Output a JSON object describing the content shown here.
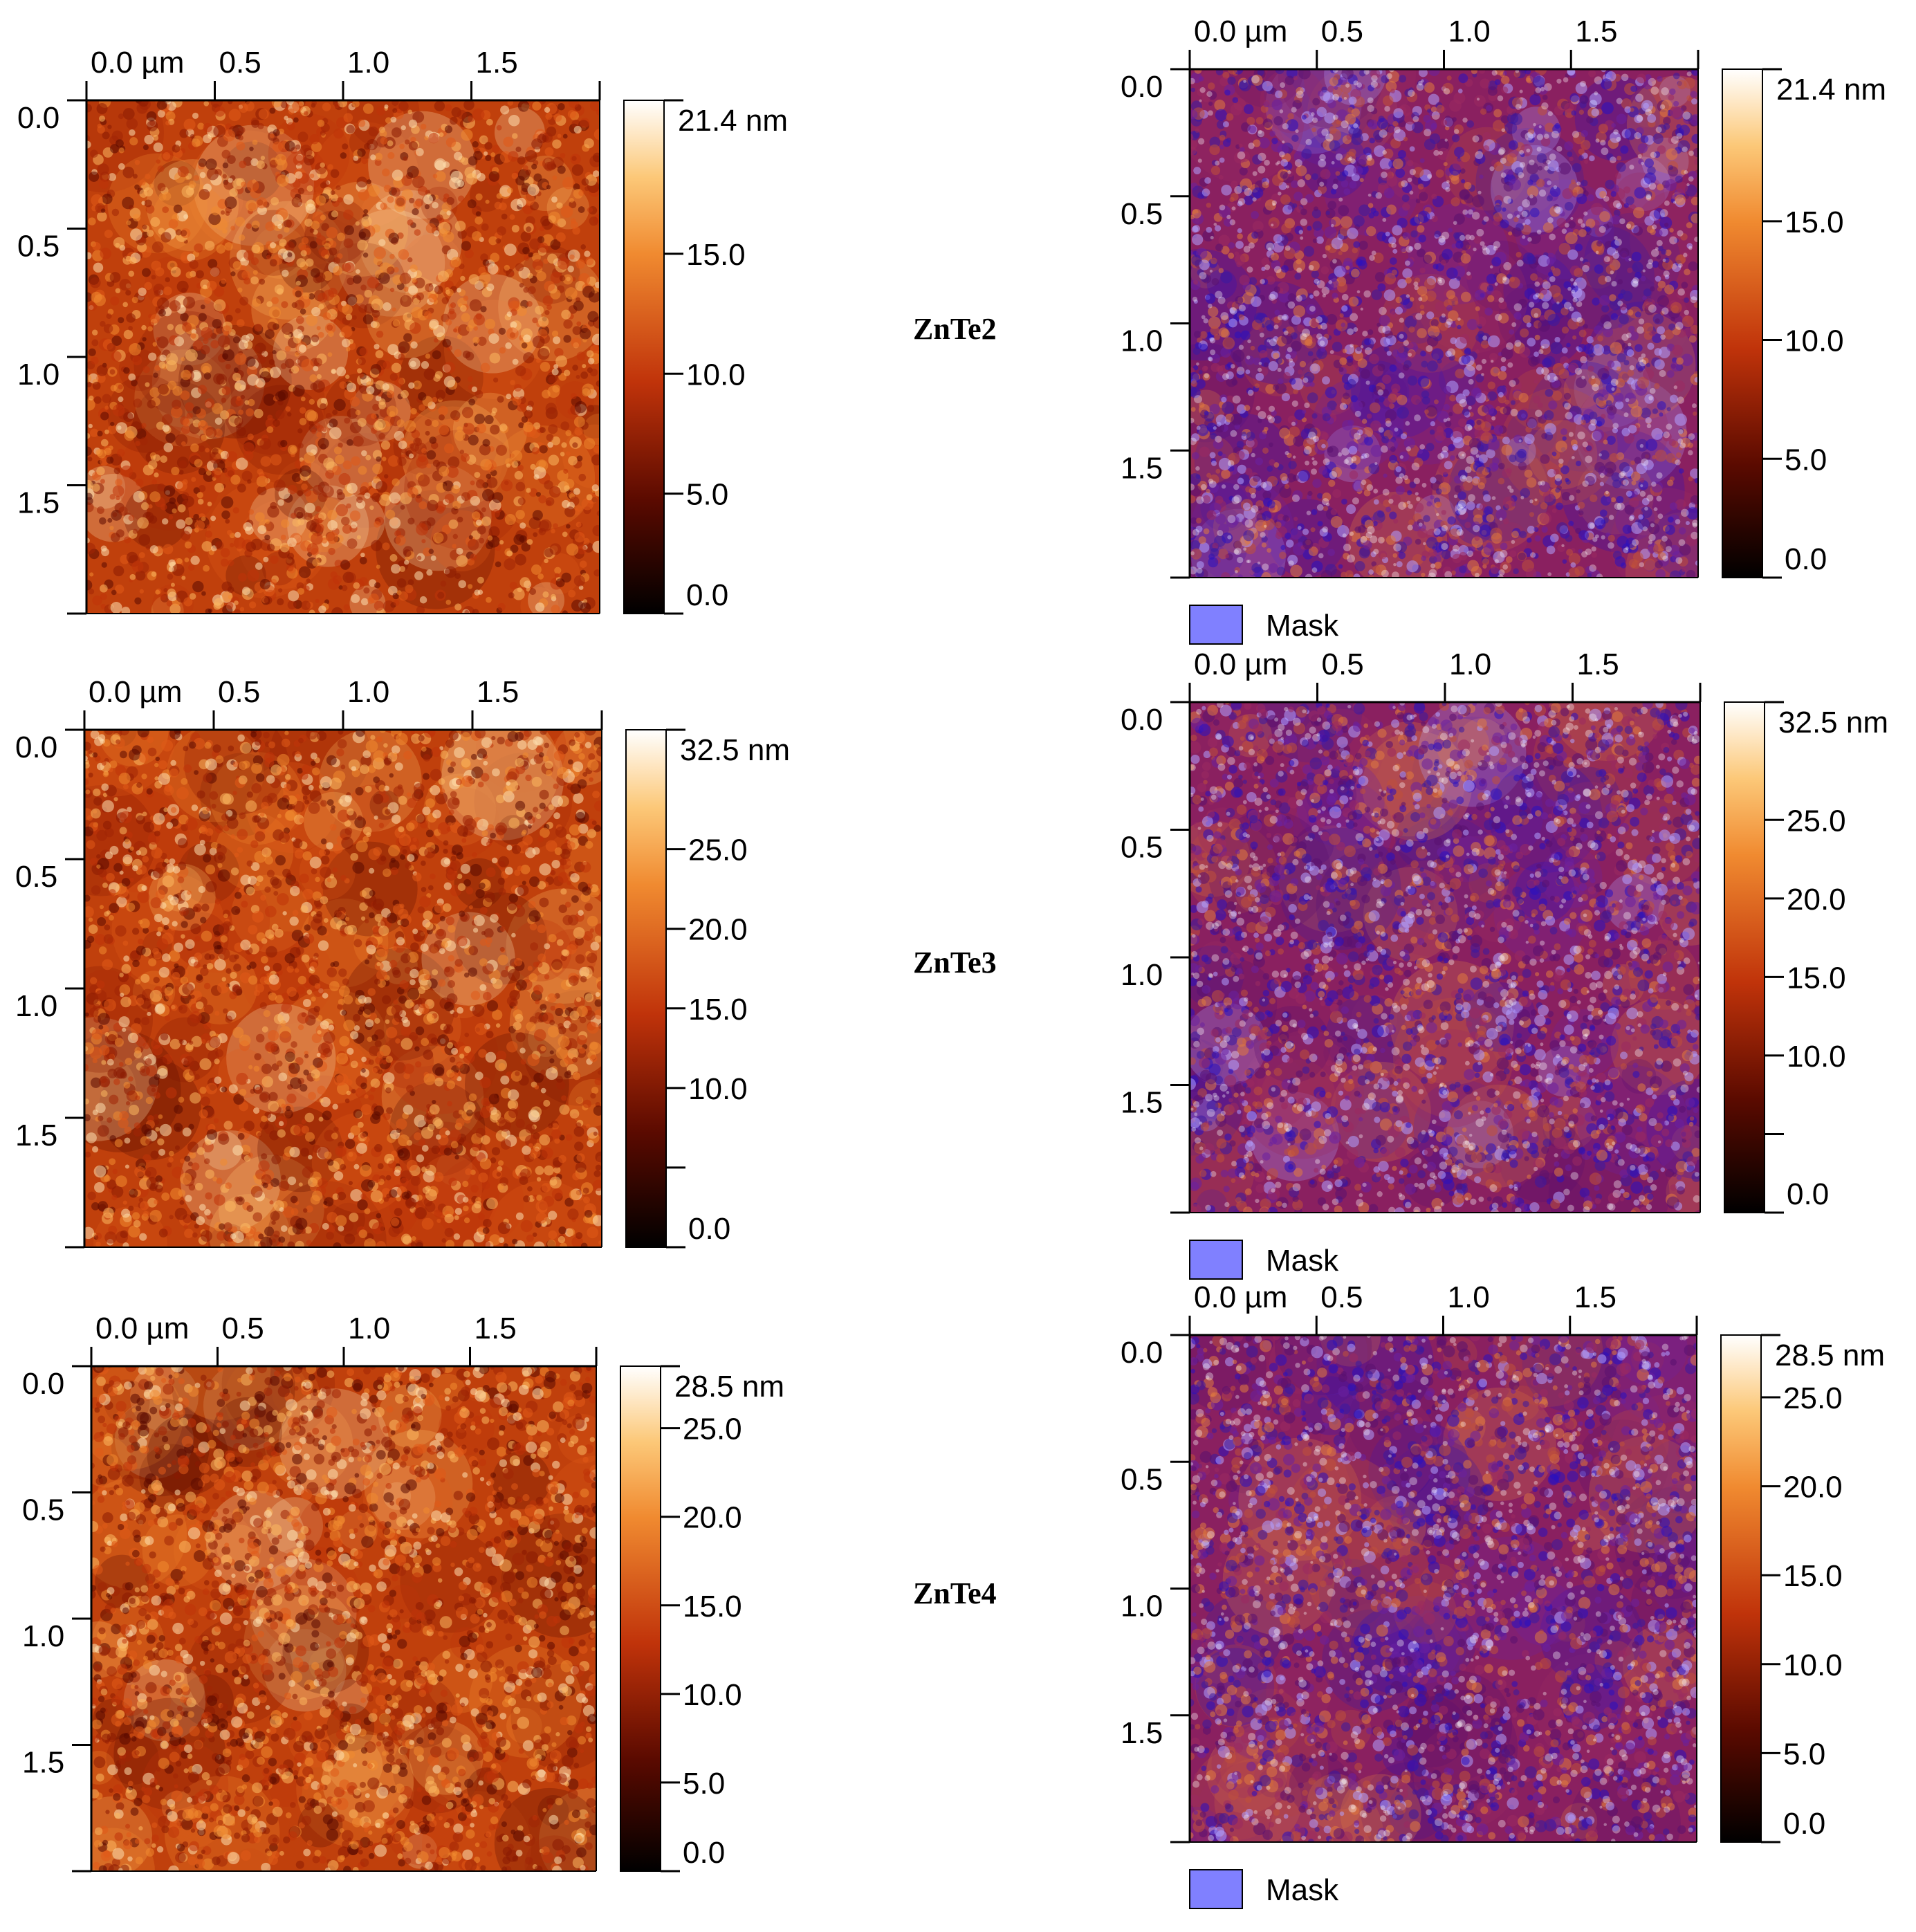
{
  "samples": [
    {
      "label": "ZnTe2",
      "x_ticks": [
        "0.0 µm",
        "0.5",
        "1.0",
        "1.5"
      ],
      "y_ticks": [
        "0.0",
        "0.5",
        "1.0",
        "1.5"
      ],
      "scale": {
        "max": "21.4 nm",
        "ticks": [
          "15.0",
          "10.0",
          "5.0",
          "0.0"
        ],
        "tick_values": [
          15,
          10,
          5,
          0
        ],
        "max_value": 21.4
      },
      "texture": {
        "seed": 3,
        "bright": 0.62
      },
      "mask_label": "Mask"
    },
    {
      "label": "ZnTe3",
      "x_ticks": [
        "0.0 µm",
        "0.5",
        "1.0",
        "1.5"
      ],
      "y_ticks": [
        "0.0",
        "0.5",
        "1.0",
        "1.5"
      ],
      "scale": {
        "max": "32.5 nm",
        "ticks": [
          "25.0",
          "20.0",
          "15.0",
          "10.0",
          "0.0"
        ],
        "tick_values": [
          25,
          20,
          15,
          10,
          0
        ],
        "max_value": 32.5,
        "unlabeled_ticks": [
          5
        ]
      },
      "texture": {
        "seed": 11,
        "bright": 0.55
      },
      "mask_label": "Mask"
    },
    {
      "label": "ZnTe4",
      "x_ticks": [
        "0.0 µm",
        "0.5",
        "1.0",
        "1.5"
      ],
      "y_ticks": [
        "0.0",
        "0.5",
        "1.0",
        "1.5"
      ],
      "scale": {
        "max": "28.5 nm",
        "ticks": [
          "25.0",
          "20.0",
          "15.0",
          "10.0",
          "5.0",
          "0.0"
        ],
        "tick_values": [
          25,
          20,
          15,
          10,
          5,
          0
        ],
        "max_value": 28.5
      },
      "texture": {
        "seed": 23,
        "bright": 0.45
      },
      "mask_label": "Mask"
    }
  ],
  "colors": {
    "mask_swatch": "#8080ff",
    "mask_overlay": "#3a2cff",
    "afm_dark": "#000000",
    "afm_mid": "#c0330a",
    "afm_light": "#f8a040",
    "afm_white": "#ffffff"
  }
}
